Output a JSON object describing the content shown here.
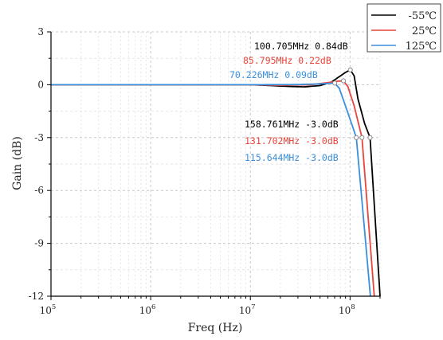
{
  "chart_data": {
    "type": "line",
    "title": "",
    "xlabel": "Freq (Hz)",
    "ylabel": "Gain (dB)",
    "x_scale": "log",
    "xlim": [
      100000,
      200000000
    ],
    "ylim": [
      -12,
      3
    ],
    "grid": true,
    "legend_position": "top-right",
    "x_ticks": [
      {
        "value": 100000,
        "base": "10",
        "exp": "5"
      },
      {
        "value": 1000000,
        "base": "10",
        "exp": "6"
      },
      {
        "value": 10000000,
        "base": "10",
        "exp": "7"
      },
      {
        "value": 100000000,
        "base": "10",
        "exp": "8"
      }
    ],
    "y_ticks": [
      {
        "value": 3,
        "label": "3"
      },
      {
        "value": 0,
        "label": "0"
      },
      {
        "value": -3,
        "label": "-3"
      },
      {
        "value": -6,
        "label": "-6"
      },
      {
        "value": -9,
        "label": "-9"
      },
      {
        "value": -12,
        "label": "-12"
      }
    ],
    "series": [
      {
        "name": "-55℃",
        "color": "#000000",
        "points": [
          [
            100000,
            0
          ],
          [
            1000000,
            0
          ],
          [
            10000000,
            0
          ],
          [
            15000000,
            -0.04
          ],
          [
            25000000,
            -0.1
          ],
          [
            35000000,
            -0.12
          ],
          [
            50000000,
            -0.05
          ],
          [
            65000000,
            0.15
          ],
          [
            80000000,
            0.5
          ],
          [
            90000000,
            0.7
          ],
          [
            100705000,
            0.84
          ],
          [
            110000000,
            0.5
          ],
          [
            120000000,
            -0.8
          ],
          [
            140000000,
            -2.2
          ],
          [
            158761000,
            -3.0
          ],
          [
            200000000,
            -12
          ]
        ]
      },
      {
        "name": "25℃",
        "color": "#e8453c",
        "points": [
          [
            100000,
            0
          ],
          [
            1000000,
            0
          ],
          [
            10000000,
            0
          ],
          [
            20000000,
            -0.03
          ],
          [
            40000000,
            0
          ],
          [
            60000000,
            0.12
          ],
          [
            75000000,
            0.2
          ],
          [
            85795000,
            0.22
          ],
          [
            95000000,
            -0.1
          ],
          [
            110000000,
            -1.2
          ],
          [
            131702000,
            -3.0
          ],
          [
            175000000,
            -12
          ]
        ]
      },
      {
        "name": "125℃",
        "color": "#3a8fdc",
        "points": [
          [
            100000,
            0
          ],
          [
            1000000,
            0
          ],
          [
            10000000,
            0
          ],
          [
            30000000,
            0.01
          ],
          [
            50000000,
            0.05
          ],
          [
            70226000,
            0.09
          ],
          [
            78000000,
            -0.2
          ],
          [
            90000000,
            -1.2
          ],
          [
            115644000,
            -3.0
          ],
          [
            160000000,
            -12
          ]
        ]
      }
    ],
    "annotations": [
      {
        "text": "100.705MHz 0.84dB",
        "color": "#000000",
        "x": 100705000,
        "y": 0.84
      },
      {
        "text": "85.795MHz 0.22dB",
        "color": "#e8453c",
        "x": 85795000,
        "y": 0.22
      },
      {
        "text": "70.226MHz 0.09dB",
        "color": "#3a8fdc",
        "x": 70226000,
        "y": 0.09
      },
      {
        "text": "158.761MHz -3.0dB",
        "color": "#000000",
        "x": 158761000,
        "y": -3.0
      },
      {
        "text": "131.702MHz -3.0dB",
        "color": "#e8453c",
        "x": 131702000,
        "y": -3.0
      },
      {
        "text": "115.644MHz -3.0dB",
        "color": "#3a8fdc",
        "x": 115644000,
        "y": -3.0
      }
    ]
  }
}
